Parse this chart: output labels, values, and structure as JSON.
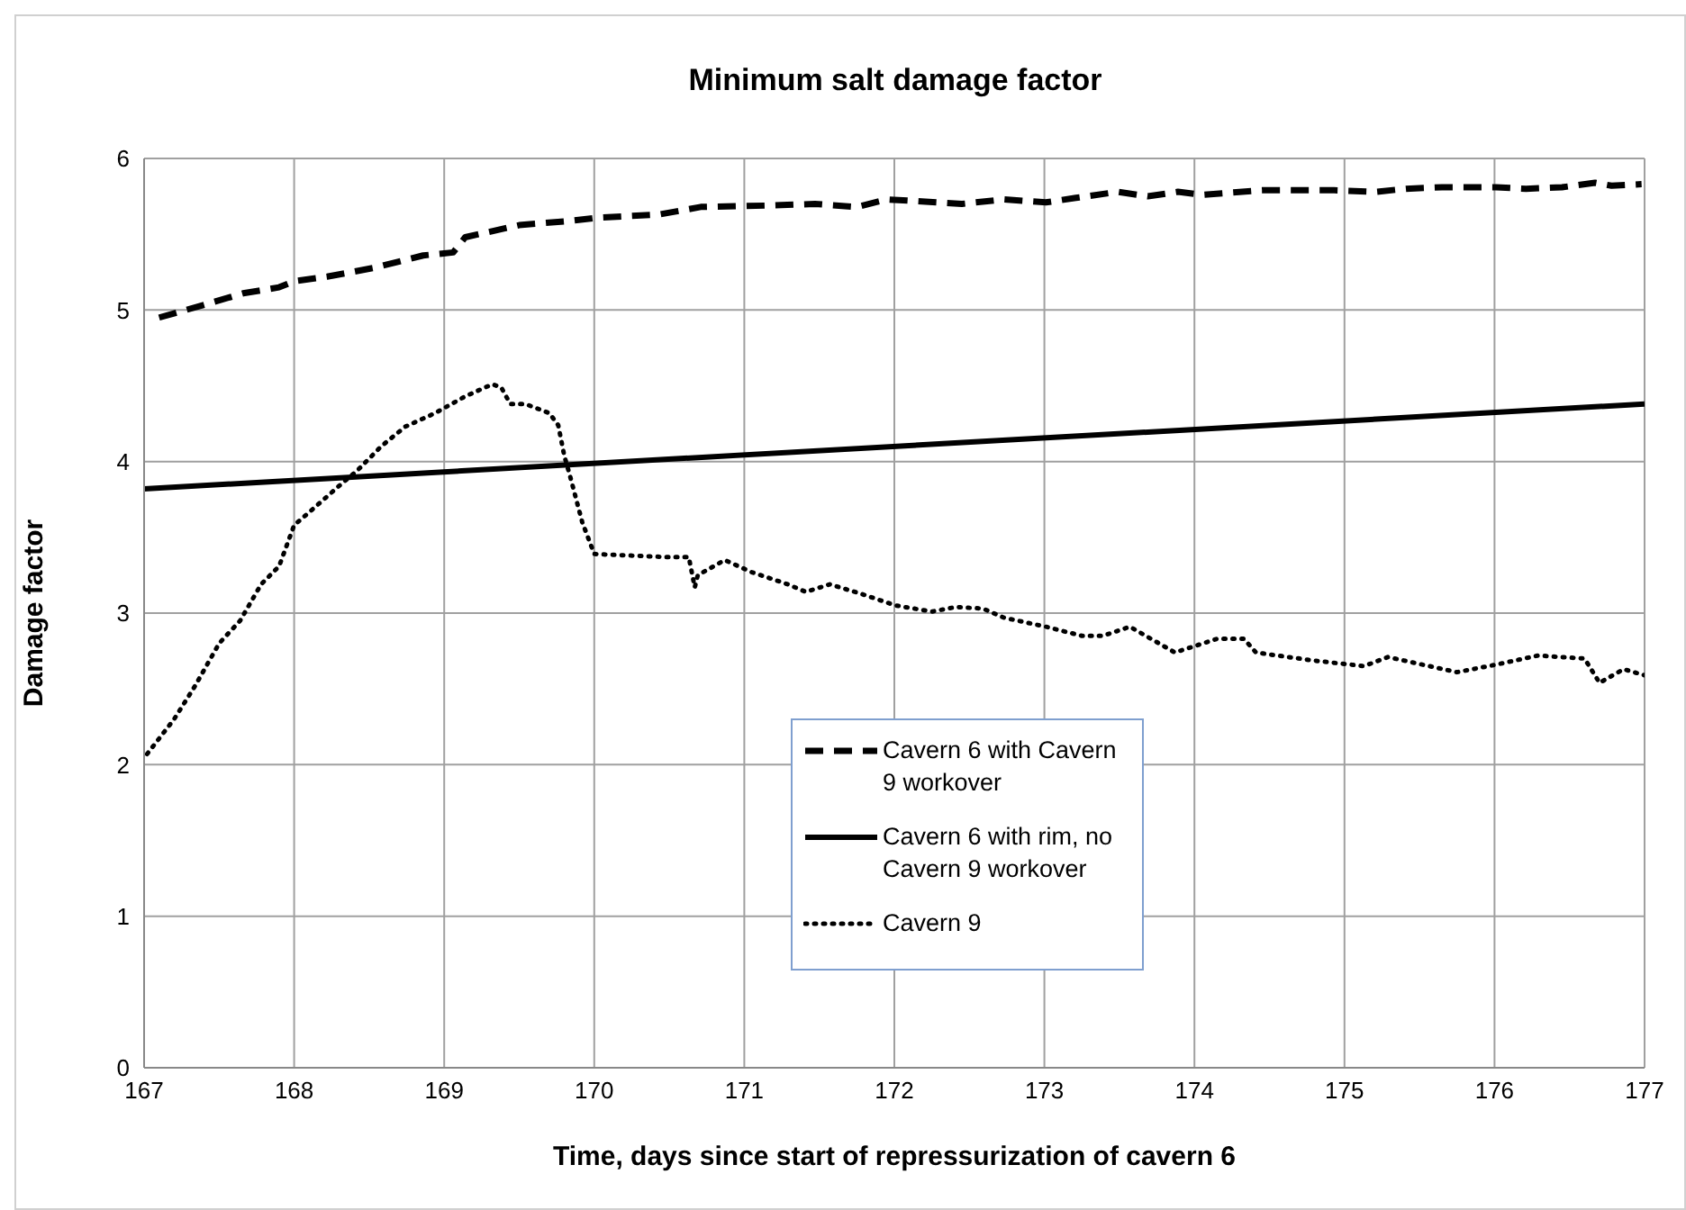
{
  "chart_data": {
    "type": "line",
    "title": "Minimum salt damage factor",
    "xlabel": "Time, days since start of repressurization of cavern 6",
    "ylabel": "Damage factor",
    "xlim": [
      167,
      177
    ],
    "xticks": [
      167,
      168,
      169,
      170,
      171,
      172,
      173,
      174,
      175,
      176,
      177
    ],
    "ylim": [
      0,
      6
    ],
    "yticks": [
      0,
      1,
      2,
      3,
      4,
      5,
      6
    ],
    "grid": true,
    "legend": "bottom",
    "marker": "none",
    "series": [
      {
        "name": "Cavern 6 with Cavern 9 workover",
        "color": "#000000",
        "line_style": "dashed",
        "x": [
          167.1,
          167.42,
          167.66,
          167.9,
          168.0,
          168.22,
          168.54,
          168.86,
          169.06,
          169.14,
          169.5,
          169.86,
          170.03,
          170.43,
          170.71,
          171.19,
          171.47,
          171.75,
          171.95,
          172.45,
          172.73,
          173.01,
          173.21,
          173.49,
          173.69,
          173.89,
          174.05,
          174.45,
          174.93,
          175.21,
          175.41,
          175.65,
          176.01,
          176.21,
          176.45,
          176.67,
          176.78,
          176.98
        ],
        "values": [
          4.95,
          5.04,
          5.11,
          5.15,
          5.19,
          5.22,
          5.28,
          5.36,
          5.38,
          5.48,
          5.56,
          5.59,
          5.61,
          5.63,
          5.68,
          5.69,
          5.7,
          5.68,
          5.73,
          5.7,
          5.73,
          5.71,
          5.74,
          5.78,
          5.75,
          5.78,
          5.76,
          5.79,
          5.79,
          5.78,
          5.8,
          5.81,
          5.81,
          5.8,
          5.81,
          5.84,
          5.82,
          5.83
        ]
      },
      {
        "name": "Cavern 6 with rim, no Cavern 9 workover",
        "color": "#000000",
        "line_style": "solid",
        "x": [
          167,
          177
        ],
        "values": [
          3.82,
          4.38
        ]
      },
      {
        "name": "Cavern 9",
        "color": "#000000",
        "line_style": "dotted",
        "x": [
          167.02,
          167.2,
          167.34,
          167.5,
          167.64,
          167.78,
          167.9,
          168.0,
          168.14,
          168.3,
          168.42,
          168.58,
          168.74,
          168.94,
          169.14,
          169.32,
          169.38,
          169.44,
          169.54,
          169.7,
          169.76,
          169.8,
          169.84,
          169.92,
          170.0,
          170.47,
          170.63,
          170.67,
          170.69,
          170.87,
          171.05,
          171.29,
          171.41,
          171.57,
          171.77,
          172.01,
          172.25,
          172.41,
          172.59,
          172.73,
          173.01,
          173.25,
          173.39,
          173.57,
          173.87,
          174.15,
          174.33,
          174.41,
          174.77,
          175.13,
          175.29,
          175.75,
          176.01,
          176.29,
          176.6,
          176.7,
          176.86,
          177.0
        ],
        "values": [
          2.07,
          2.3,
          2.52,
          2.8,
          2.95,
          3.19,
          3.31,
          3.58,
          3.7,
          3.84,
          3.94,
          4.1,
          4.23,
          4.32,
          4.43,
          4.51,
          4.49,
          4.38,
          4.38,
          4.32,
          4.24,
          4.04,
          3.9,
          3.6,
          3.39,
          3.37,
          3.37,
          3.17,
          3.25,
          3.35,
          3.27,
          3.19,
          3.14,
          3.19,
          3.13,
          3.05,
          3.01,
          3.04,
          3.03,
          2.97,
          2.91,
          2.85,
          2.85,
          2.91,
          2.74,
          2.83,
          2.83,
          2.74,
          2.69,
          2.65,
          2.71,
          2.61,
          2.66,
          2.72,
          2.7,
          2.54,
          2.63,
          2.59
        ]
      }
    ]
  }
}
